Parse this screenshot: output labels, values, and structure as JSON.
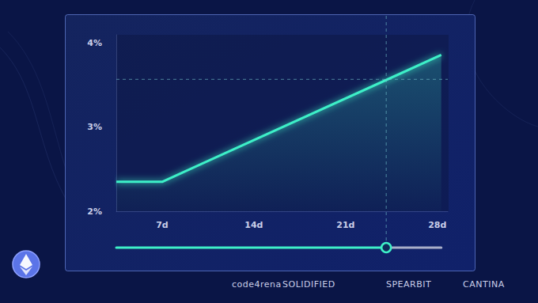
{
  "chart_data": {
    "type": "line",
    "x": [
      3.5,
      7,
      28.3
    ],
    "values": [
      2.35,
      2.35,
      3.86
    ],
    "color": "#3ef0c8",
    "xlim": [
      3.5,
      28.8
    ],
    "xticks": [
      {
        "value": 7,
        "label": "7d"
      },
      {
        "value": 14,
        "label": "14d"
      },
      {
        "value": 21,
        "label": "21d"
      },
      {
        "value": 28,
        "label": "28d"
      }
    ],
    "ylim": [
      2,
      4.1
    ],
    "yticks": [
      {
        "value": 2,
        "label": "2%"
      },
      {
        "value": 3,
        "label": "3%"
      },
      {
        "value": 4,
        "label": "4%"
      }
    ],
    "grid": false,
    "crosshair": {
      "x": 24.1,
      "y": 3.57
    }
  },
  "footer": {
    "logos": [
      "code4rena",
      "SOLIDIFIED",
      "SPEARBIT",
      "CANTINA"
    ]
  }
}
